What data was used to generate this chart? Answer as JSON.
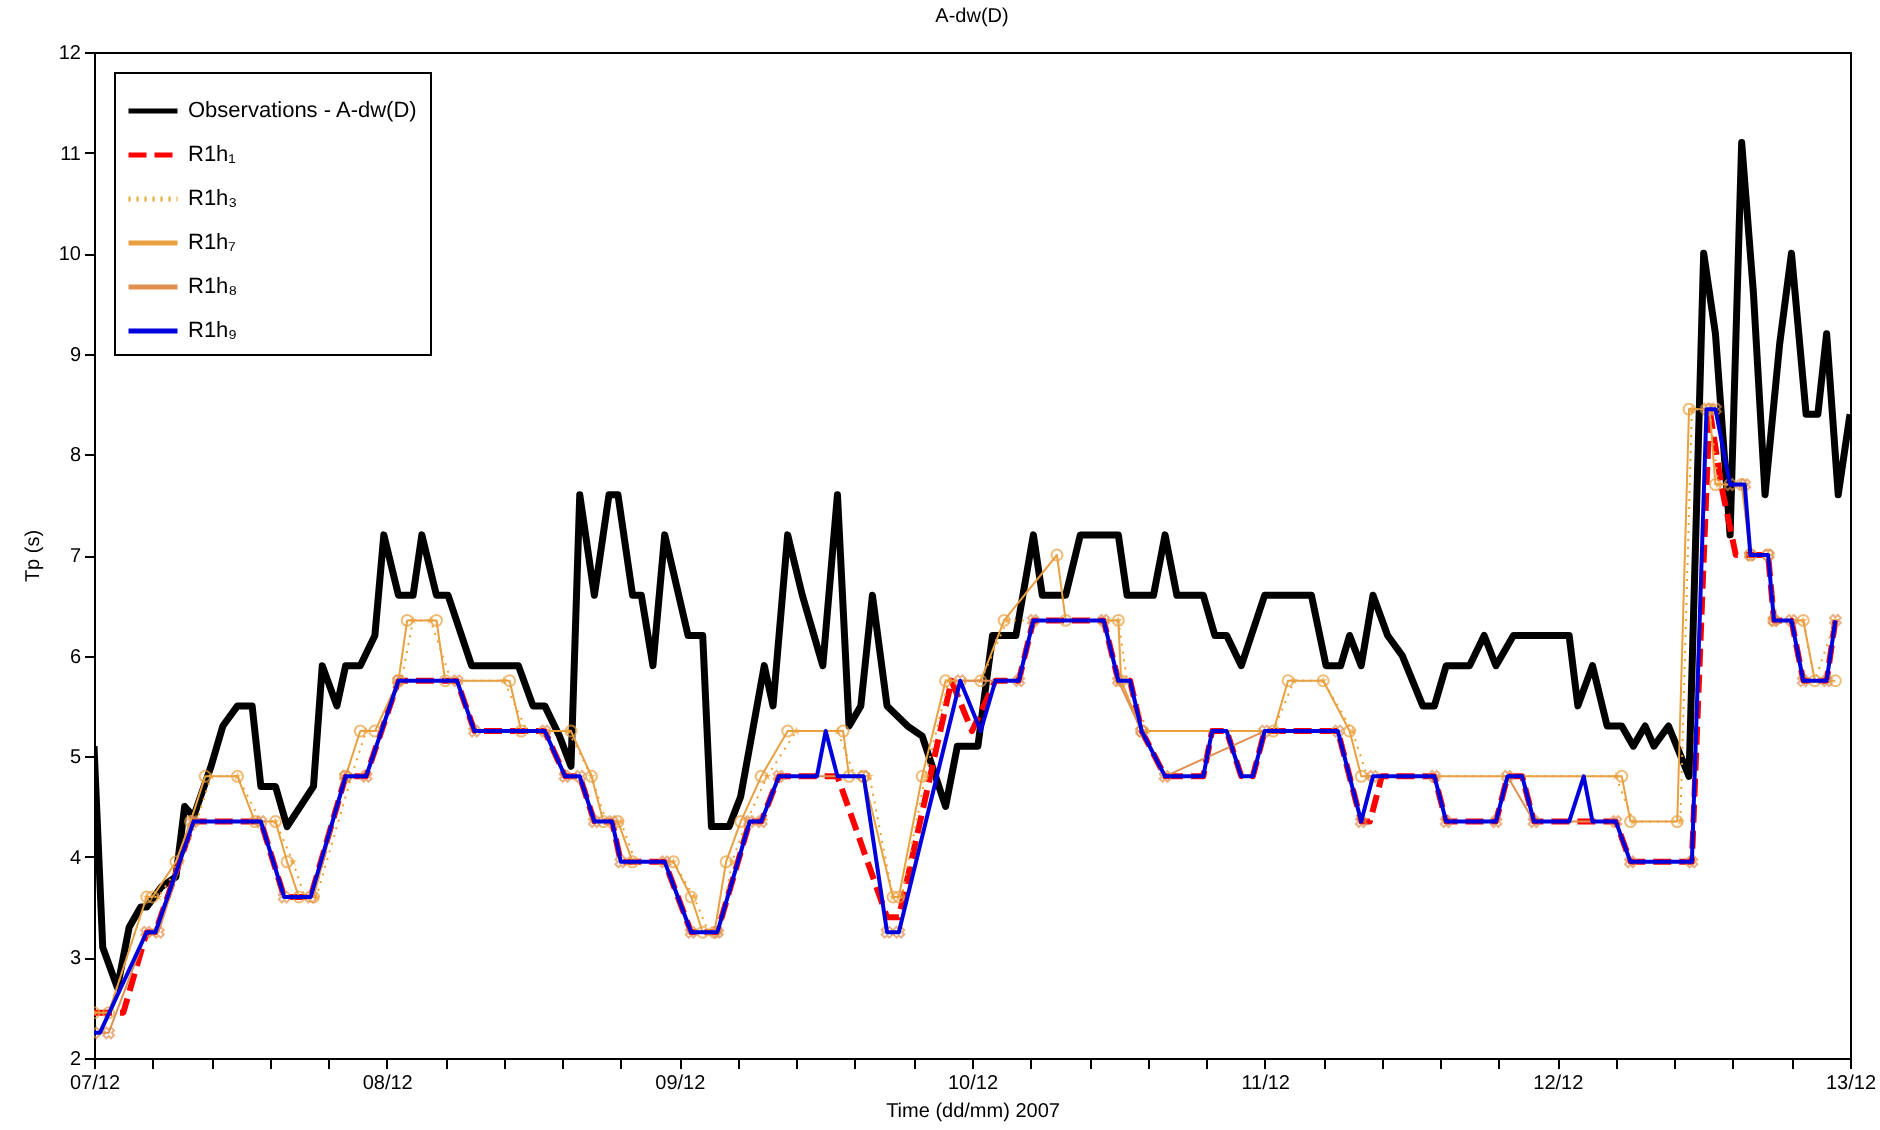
{
  "chart_data": {
    "type": "line",
    "title": "A-dw(D)",
    "xlabel": "Time (dd/mm) 2007",
    "ylabel": "Tp (s)",
    "xlim": [
      "2007-12-07",
      "2007-12-13"
    ],
    "ylim": [
      2,
      12
    ],
    "xticks": [
      {
        "value": "2007-12-07",
        "label": "07/12"
      },
      {
        "value": "2007-12-07T04:48",
        "label": null
      },
      {
        "value": "2007-12-07T09:36",
        "label": null
      },
      {
        "value": "2007-12-07T14:24",
        "label": null
      },
      {
        "value": "2007-12-07T19:12",
        "label": null
      },
      {
        "value": "2007-12-08",
        "label": "08/12"
      },
      {
        "value": "2007-12-08T04:48",
        "label": null
      },
      {
        "value": "2007-12-08T09:36",
        "label": null
      },
      {
        "value": "2007-12-08T14:24",
        "label": null
      },
      {
        "value": "2007-12-08T19:12",
        "label": null
      },
      {
        "value": "2007-12-09",
        "label": "09/12"
      },
      {
        "value": "2007-12-09T04:48",
        "label": null
      },
      {
        "value": "2007-12-09T09:36",
        "label": null
      },
      {
        "value": "2007-12-09T14:24",
        "label": null
      },
      {
        "value": "2007-12-09T19:12",
        "label": null
      },
      {
        "value": "2007-12-10",
        "label": "10/12"
      },
      {
        "value": "2007-12-10T04:48",
        "label": null
      },
      {
        "value": "2007-12-10T09:36",
        "label": null
      },
      {
        "value": "2007-12-10T14:24",
        "label": null
      },
      {
        "value": "2007-12-10T19:12",
        "label": null
      },
      {
        "value": "2007-12-11",
        "label": "11/12"
      },
      {
        "value": "2007-12-11T04:48",
        "label": null
      },
      {
        "value": "2007-12-11T09:36",
        "label": null
      },
      {
        "value": "2007-12-11T14:24",
        "label": null
      },
      {
        "value": "2007-12-11T19:12",
        "label": null
      },
      {
        "value": "2007-12-12",
        "label": "12/12"
      },
      {
        "value": "2007-12-12T04:48",
        "label": null
      },
      {
        "value": "2007-12-12T09:36",
        "label": null
      },
      {
        "value": "2007-12-12T14:24",
        "label": null
      },
      {
        "value": "2007-12-12T19:12",
        "label": null
      },
      {
        "value": "2007-12-13",
        "label": "13/12"
      }
    ],
    "yticks": [
      2,
      3,
      4,
      5,
      6,
      7,
      8,
      9,
      10,
      11,
      12
    ],
    "legend": "top left",
    "grid": false,
    "series": [
      {
        "name": "Observations - A-dw(D)",
        "color": "#000000",
        "line_style": "solid",
        "marker": "none",
        "x": [
          "2007-12-07T00:00",
          "2007-12-07T00:43",
          "2007-12-07T01:55",
          "2007-12-07T02:53",
          "2007-12-07T03:50",
          "2007-12-07T04:19",
          "2007-12-07T05:31",
          "2007-12-07T06:43",
          "2007-12-07T07:26",
          "2007-12-07T08:10",
          "2007-12-07T09:36",
          "2007-12-07T10:34",
          "2007-12-07T11:46",
          "2007-12-07T12:58",
          "2007-12-07T13:41",
          "2007-12-07T14:53",
          "2007-12-07T15:50",
          "2007-12-07T18:00",
          "2007-12-07T18:43",
          "2007-12-07T19:55",
          "2007-12-07T20:38",
          "2007-12-07T21:50",
          "2007-12-07T23:02",
          "2007-12-07T23:46",
          "2007-12-08T00:58",
          "2007-12-08T02:10",
          "2007-12-08T02:53",
          "2007-12-08T04:05",
          "2007-12-08T05:02",
          "2007-12-08T06:58",
          "2007-12-08T10:48",
          "2007-12-08T12:00",
          "2007-12-08T12:58",
          "2007-12-08T14:10",
          "2007-12-08T15:07",
          "2007-12-08T15:50",
          "2007-12-08T17:02",
          "2007-12-08T18:14",
          "2007-12-08T18:58",
          "2007-12-08T20:10",
          "2007-12-08T20:53",
          "2007-12-08T21:50",
          "2007-12-08T22:48",
          "2007-12-09T00:43",
          "2007-12-09T01:55",
          "2007-12-09T02:38",
          "2007-12-09T04:05",
          "2007-12-09T05:02",
          "2007-12-09T06:58",
          "2007-12-09T07:41",
          "2007-12-09T08:53",
          "2007-12-09T10:05",
          "2007-12-09T11:46",
          "2007-12-09T12:58",
          "2007-12-09T13:55",
          "2007-12-09T14:53",
          "2007-12-09T15:50",
          "2007-12-09T17:02",
          "2007-12-09T18:43",
          "2007-12-09T19:55",
          "2007-12-09T21:50",
          "2007-12-09T22:48",
          "2007-12-10T00:29",
          "2007-12-10T01:41",
          "2007-12-10T03:36",
          "2007-12-10T05:02",
          "2007-12-10T05:46",
          "2007-12-10T07:41",
          "2007-12-10T08:53",
          "2007-12-10T12:00",
          "2007-12-10T12:43",
          "2007-12-10T14:53",
          "2007-12-10T15:50",
          "2007-12-10T16:48",
          "2007-12-10T18:58",
          "2007-12-10T19:55",
          "2007-12-10T20:53",
          "2007-12-10T22:05",
          "2007-12-11T00:00",
          "2007-12-11T03:50",
          "2007-12-11T05:02",
          "2007-12-11T06:14",
          "2007-12-11T06:58",
          "2007-12-11T07:55",
          "2007-12-11T08:53",
          "2007-12-11T10:05",
          "2007-12-11T11:17",
          "2007-12-11T12:58",
          "2007-12-11T13:55",
          "2007-12-11T14:53",
          "2007-12-11T16:48",
          "2007-12-11T18:00",
          "2007-12-11T18:58",
          "2007-12-11T20:24",
          "2007-12-12T00:58",
          "2007-12-12T01:41",
          "2007-12-12T02:53",
          "2007-12-12T04:05",
          "2007-12-12T05:17",
          "2007-12-12T06:14",
          "2007-12-12T07:12",
          "2007-12-12T07:55",
          "2007-12-12T09:07",
          "2007-12-12T10:48",
          "2007-12-12T12:00",
          "2007-12-12T12:58",
          "2007-12-12T14:10",
          "2007-12-12T15:07",
          "2007-12-12T16:05",
          "2007-12-12T17:02",
          "2007-12-12T18:14",
          "2007-12-12T19:12",
          "2007-12-12T20:24",
          "2007-12-12T21:22",
          "2007-12-12T22:05",
          "2007-12-12T23:02",
          "2007-12-13T00:00"
        ],
        "values": [
          5.1,
          3.1,
          2.7,
          3.3,
          3.5,
          3.5,
          3.7,
          3.8,
          4.5,
          4.4,
          4.9,
          5.3,
          5.5,
          5.5,
          4.7,
          4.7,
          4.3,
          4.7,
          5.9,
          5.5,
          5.9,
          5.9,
          6.2,
          7.2,
          6.6,
          6.6,
          7.2,
          6.6,
          6.6,
          5.9,
          5.9,
          5.5,
          5.5,
          5.2,
          4.9,
          7.6,
          6.6,
          7.6,
          7.6,
          6.6,
          6.6,
          5.9,
          7.2,
          6.2,
          6.2,
          4.3,
          4.3,
          4.6,
          5.9,
          5.5,
          7.2,
          6.6,
          5.9,
          7.6,
          5.3,
          5.5,
          6.6,
          5.5,
          5.3,
          5.2,
          4.5,
          5.1,
          5.1,
          6.2,
          6.2,
          7.2,
          6.6,
          6.6,
          7.2,
          7.2,
          6.6,
          6.6,
          7.2,
          6.6,
          6.6,
          6.2,
          6.2,
          5.9,
          6.6,
          6.6,
          5.9,
          5.9,
          6.2,
          5.9,
          6.6,
          6.2,
          6,
          5.5,
          5.5,
          5.9,
          5.9,
          6.2,
          5.9,
          6.2,
          6.2,
          5.5,
          5.9,
          5.3,
          5.3,
          5.1,
          5.3,
          5.1,
          5.3,
          4.8,
          10,
          9.2,
          7.2,
          11.1,
          9.6,
          7.6,
          9.1,
          10,
          8.4,
          8.4,
          9.2,
          7.6,
          8.4
        ]
      },
      {
        "name": "R1h₁",
        "color": "#ff0000",
        "line_style": "dashed",
        "marker": "none",
        "x": [
          "2007-12-07T00:00",
          "2007-12-07T02:24",
          "2007-12-07T04:19",
          "2007-12-07T05:02",
          "2007-12-07T08:10",
          "2007-12-07T13:41",
          "2007-12-07T15:36",
          "2007-12-07T17:46",
          "2007-12-07T20:38",
          "2007-12-07T22:19",
          "2007-12-08T00:58",
          "2007-12-08T05:46",
          "2007-12-08T07:12",
          "2007-12-08T12:58",
          "2007-12-08T14:38",
          "2007-12-08T15:50",
          "2007-12-08T17:02",
          "2007-12-08T18:29",
          "2007-12-08T19:12",
          "2007-12-08T22:48",
          "2007-12-09T00:58",
          "2007-12-09T03:07",
          "2007-12-09T05:46",
          "2007-12-09T06:43",
          "2007-12-09T08:10",
          "2007-12-09T12:58",
          "2007-12-09T17:02",
          "2007-12-09T18:00",
          "2007-12-09T22:19",
          "2007-12-10T00:00",
          "2007-12-10T01:55",
          "2007-12-10T03:50",
          "2007-12-10T05:02",
          "2007-12-10T10:48",
          "2007-12-10T12:00",
          "2007-12-10T12:58",
          "2007-12-10T13:55",
          "2007-12-10T15:50",
          "2007-12-10T18:58",
          "2007-12-10T19:41",
          "2007-12-10T20:53",
          "2007-12-10T22:05",
          "2007-12-10T23:02",
          "2007-12-11T00:00",
          "2007-12-11T06:00",
          "2007-12-11T07:55",
          "2007-12-11T08:38",
          "2007-12-11T09:36",
          "2007-12-11T13:55",
          "2007-12-11T14:53",
          "2007-12-11T18:58",
          "2007-12-11T19:55",
          "2007-12-11T21:07",
          "2007-12-11T22:05",
          "2007-12-12T04:48",
          "2007-12-12T06:00",
          "2007-12-12T11:02",
          "2007-12-12T12:29",
          "2007-12-12T13:26",
          "2007-12-12T14:38",
          "2007-12-12T17:17",
          "2007-12-12T17:46",
          "2007-12-12T19:12",
          "2007-12-12T20:10",
          "2007-12-12T22:05",
          "2007-12-12T22:48"
        ],
        "values": [
          2.45,
          2.45,
          3.25,
          3.25,
          4.35,
          4.35,
          3.6,
          3.6,
          4.8,
          4.8,
          5.75,
          5.75,
          5.25,
          5.25,
          4.8,
          4.8,
          4.35,
          4.35,
          3.95,
          3.95,
          3.25,
          3.25,
          4.35,
          4.35,
          4.8,
          4.8,
          3.4,
          3.4,
          5.75,
          5.25,
          5.75,
          5.75,
          6.35,
          6.35,
          5.75,
          5.75,
          5.25,
          4.8,
          4.8,
          5.25,
          5.25,
          4.8,
          4.8,
          5.25,
          5.25,
          4.35,
          4.35,
          4.8,
          4.8,
          4.35,
          4.35,
          4.8,
          4.8,
          4.35,
          4.35,
          3.95,
          3.95,
          8.45,
          7.7,
          7,
          7,
          6.35,
          6.35,
          5.75,
          5.75,
          6.35
        ]
      },
      {
        "name": "R1h₃",
        "color": "#f0a030",
        "line_style": "dotted",
        "marker": "star",
        "x": [
          "2007-12-07T00:00",
          "2007-12-07T01:12",
          "2007-12-07T04:19",
          "2007-12-07T05:17",
          "2007-12-07T07:12",
          "2007-12-07T08:24",
          "2007-12-07T09:36",
          "2007-12-07T11:46",
          "2007-12-07T13:41",
          "2007-12-07T14:53",
          "2007-12-07T16:19",
          "2007-12-07T17:17",
          "2007-12-07T18:14",
          "2007-12-07T21:07",
          "2007-12-07T22:19",
          "2007-12-07T23:31",
          "2007-12-08T01:12",
          "2007-12-08T02:10",
          "2007-12-08T03:36",
          "2007-12-08T05:17",
          "2007-12-08T09:36",
          "2007-12-08T11:31",
          "2007-12-08T14:53",
          "2007-12-08T16:48",
          "2007-12-08T18:00",
          "2007-12-08T19:12",
          "2007-12-08T20:24",
          "2007-12-08T23:31",
          "2007-12-09T01:12",
          "2007-12-09T02:24",
          "2007-12-09T03:22",
          "2007-12-09T04:19",
          "2007-12-09T05:31",
          "2007-12-09T07:12",
          "2007-12-09T09:36",
          "2007-12-09T12:58",
          "2007-12-09T14:24",
          "2007-12-09T15:36",
          "2007-12-09T17:31",
          "2007-12-09T18:14",
          "2007-12-09T20:10",
          "2007-12-09T22:05",
          "2007-12-10T00:43",
          "2007-12-10T02:53",
          "2007-12-10T12:00",
          "2007-12-10T12:43",
          "2007-12-10T14:24",
          "2007-12-11T00:43",
          "2007-12-11T02:24",
          "2007-12-11T04:48",
          "2007-12-11T07:12",
          "2007-12-11T08:24",
          "2007-12-12T04:48",
          "2007-12-12T06:14",
          "2007-12-12T10:05",
          "2007-12-12T11:02",
          "2007-12-12T12:29",
          "2007-12-12T13:12",
          "2007-12-12T15:07",
          "2007-12-12T15:50",
          "2007-12-12T17:17",
          "2007-12-12T18:00",
          "2007-12-12T20:10",
          "2007-12-12T21:07",
          "2007-12-12T22:48"
        ],
        "values": [
          2.45,
          2.45,
          3.6,
          3.6,
          3.95,
          4.35,
          4.8,
          4.8,
          4.35,
          4.35,
          3.95,
          3.6,
          3.6,
          4.8,
          5.25,
          5.25,
          5.75,
          6.35,
          6.35,
          5.75,
          5.75,
          5.25,
          5.25,
          4.8,
          4.35,
          4.35,
          3.95,
          3.95,
          3.6,
          3.25,
          3.25,
          3.95,
          4.35,
          4.8,
          5.25,
          5.25,
          4.8,
          4.8,
          3.6,
          3.6,
          4.8,
          5.75,
          5.75,
          6.35,
          6.35,
          5.75,
          5.25,
          5.25,
          5.75,
          5.75,
          5.25,
          4.8,
          4.8,
          4.35,
          4.35,
          8.45,
          8.45,
          7.7,
          7.7,
          7,
          7,
          6.35,
          6.35,
          5.75,
          6.35
        ]
      },
      {
        "name": "R1h₇",
        "color": "#e8a040",
        "line_style": "solid",
        "marker": "circle",
        "x": [
          "2007-12-07T00:00",
          "2007-12-07T01:12",
          "2007-12-07T04:19",
          "2007-12-07T04:48",
          "2007-12-07T06:43",
          "2007-12-07T07:55",
          "2007-12-07T09:07",
          "2007-12-07T11:46",
          "2007-12-07T13:12",
          "2007-12-07T14:53",
          "2007-12-07T15:50",
          "2007-12-07T16:48",
          "2007-12-07T18:00",
          "2007-12-07T20:38",
          "2007-12-07T21:50",
          "2007-12-07T23:02",
          "2007-12-08T00:58",
          "2007-12-08T01:41",
          "2007-12-08T04:05",
          "2007-12-08T04:48",
          "2007-12-08T10:05",
          "2007-12-08T11:02",
          "2007-12-08T15:07",
          "2007-12-08T16:48",
          "2007-12-08T17:46",
          "2007-12-08T18:58",
          "2007-12-08T20:10",
          "2007-12-08T23:31",
          "2007-12-09T00:58",
          "2007-12-09T01:55",
          "2007-12-09T02:53",
          "2007-12-09T03:50",
          "2007-12-09T05:02",
          "2007-12-09T06:43",
          "2007-12-09T08:53",
          "2007-12-09T13:26",
          "2007-12-09T13:55",
          "2007-12-09T15:07",
          "2007-12-09T17:31",
          "2007-12-09T18:00",
          "2007-12-09T19:55",
          "2007-12-09T21:50",
          "2007-12-10T00:43",
          "2007-12-10T02:38",
          "2007-12-10T06:58",
          "2007-12-10T07:41",
          "2007-12-10T12:00",
          "2007-12-10T12:14",
          "2007-12-10T13:55",
          "2007-12-11T00:43",
          "2007-12-11T01:55",
          "2007-12-11T04:48",
          "2007-12-11T06:58",
          "2007-12-11T07:55",
          "2007-12-12T05:17",
          "2007-12-12T06:00",
          "2007-12-12T09:50",
          "2007-12-12T10:48",
          "2007-12-12T12:29",
          "2007-12-12T12:58",
          "2007-12-12T15:07",
          "2007-12-12T15:50",
          "2007-12-12T17:17",
          "2007-12-12T17:46",
          "2007-12-12T20:10",
          "2007-12-12T21:07",
          "2007-12-12T22:48"
        ],
        "values": [
          2.45,
          2.45,
          3.6,
          3.6,
          3.95,
          4.35,
          4.8,
          4.8,
          4.35,
          4.35,
          3.95,
          3.6,
          3.6,
          4.8,
          5.25,
          5.25,
          5.75,
          6.35,
          6.35,
          5.75,
          5.75,
          5.25,
          5.25,
          4.8,
          4.35,
          4.35,
          3.95,
          3.95,
          3.6,
          3.25,
          3.25,
          3.95,
          4.35,
          4.8,
          5.25,
          5.25,
          4.8,
          4.8,
          3.6,
          3.6,
          4.8,
          5.75,
          5.75,
          6.35,
          7,
          6.35,
          6.35,
          5.75,
          5.25,
          5.25,
          5.75,
          5.75,
          5.25,
          4.8,
          4.8,
          4.35,
          4.35,
          8.45,
          8.45,
          7.7,
          7.7,
          7,
          7,
          6.35,
          6.35,
          5.75,
          5.75
        ]
      },
      {
        "name": "R1h₈",
        "color": "#e09050",
        "line_style": "solid",
        "marker": "cross",
        "x": [
          "2007-12-07T00:00",
          "2007-12-07T01:12",
          "2007-12-07T04:19",
          "2007-12-07T05:17",
          "2007-12-07T08:10",
          "2007-12-07T13:41",
          "2007-12-07T15:36",
          "2007-12-07T17:46",
          "2007-12-07T20:38",
          "2007-12-07T22:19",
          "2007-12-08T00:58",
          "2007-12-08T05:46",
          "2007-12-08T07:12",
          "2007-12-08T12:58",
          "2007-12-08T14:38",
          "2007-12-08T15:50",
          "2007-12-08T17:02",
          "2007-12-08T18:29",
          "2007-12-08T19:12",
          "2007-12-08T22:48",
          "2007-12-09T00:58",
          "2007-12-09T03:07",
          "2007-12-09T05:46",
          "2007-12-09T06:43",
          "2007-12-09T08:10",
          "2007-12-09T15:07",
          "2007-12-09T17:02",
          "2007-12-09T18:00",
          "2007-12-09T23:02",
          "2007-12-10T03:50",
          "2007-12-10T05:02",
          "2007-12-10T10:48",
          "2007-12-10T12:00",
          "2007-12-10T13:55",
          "2007-12-10T15:50",
          "2007-12-11T00:00",
          "2007-12-11T06:00",
          "2007-12-11T07:55",
          "2007-12-11T08:53",
          "2007-12-11T13:55",
          "2007-12-11T14:53",
          "2007-12-11T18:58",
          "2007-12-11T19:55",
          "2007-12-11T22:05",
          "2007-12-12T04:48",
          "2007-12-12T06:00",
          "2007-12-12T11:02",
          "2007-12-12T12:14",
          "2007-12-12T12:58",
          "2007-12-12T14:10",
          "2007-12-12T15:22",
          "2007-12-12T15:50",
          "2007-12-12T17:17",
          "2007-12-12T17:46",
          "2007-12-12T19:12",
          "2007-12-12T20:10",
          "2007-12-12T22:05",
          "2007-12-12T22:48"
        ],
        "values": [
          2.25,
          2.25,
          3.25,
          3.25,
          4.35,
          4.35,
          3.6,
          3.6,
          4.8,
          4.8,
          5.75,
          5.75,
          5.25,
          5.25,
          4.8,
          4.8,
          4.35,
          4.35,
          3.95,
          3.95,
          3.25,
          3.25,
          4.35,
          4.35,
          4.8,
          4.8,
          3.25,
          3.25,
          5.75,
          5.75,
          6.35,
          6.35,
          5.75,
          5.25,
          4.8,
          5.25,
          5.25,
          4.35,
          4.8,
          4.8,
          4.35,
          4.35,
          4.8,
          4.35,
          4.35,
          3.95,
          3.95,
          8.45,
          8.45,
          7.7,
          7.7,
          7,
          7,
          6.35,
          6.35,
          5.75,
          5.75,
          6.35
        ]
      },
      {
        "name": "R1h₉",
        "color": "#0000dd",
        "line_style": "solid",
        "marker": "none",
        "x": [
          "2007-12-07T00:00",
          "2007-12-07T00:29",
          "2007-12-07T04:19",
          "2007-12-07T05:02",
          "2007-12-07T08:10",
          "2007-12-07T13:41",
          "2007-12-07T15:36",
          "2007-12-07T17:46",
          "2007-12-07T20:38",
          "2007-12-07T22:19",
          "2007-12-08T00:58",
          "2007-12-08T05:46",
          "2007-12-08T07:12",
          "2007-12-08T12:58",
          "2007-12-08T14:38",
          "2007-12-08T15:50",
          "2007-12-08T17:02",
          "2007-12-08T18:29",
          "2007-12-08T19:12",
          "2007-12-08T22:48",
          "2007-12-09T00:58",
          "2007-12-09T03:07",
          "2007-12-09T05:46",
          "2007-12-09T06:43",
          "2007-12-09T08:10",
          "2007-12-09T11:17",
          "2007-12-09T12:00",
          "2007-12-09T12:58",
          "2007-12-09T15:07",
          "2007-12-09T17:02",
          "2007-12-09T18:00",
          "2007-12-09T23:02",
          "2007-12-10T00:43",
          "2007-12-10T01:55",
          "2007-12-10T03:50",
          "2007-12-10T05:02",
          "2007-12-10T10:48",
          "2007-12-10T12:00",
          "2007-12-10T12:58",
          "2007-12-10T13:55",
          "2007-12-10T15:50",
          "2007-12-10T18:58",
          "2007-12-10T19:41",
          "2007-12-10T20:53",
          "2007-12-10T22:05",
          "2007-12-10T23:02",
          "2007-12-11T00:00",
          "2007-12-11T06:00",
          "2007-12-11T07:55",
          "2007-12-11T08:53",
          "2007-12-11T13:55",
          "2007-12-11T14:53",
          "2007-12-11T18:58",
          "2007-12-11T19:55",
          "2007-12-11T21:07",
          "2007-12-11T22:05",
          "2007-12-12T00:58",
          "2007-12-12T02:10",
          "2007-12-12T02:53",
          "2007-12-12T04:48",
          "2007-12-12T06:00",
          "2007-12-12T11:02",
          "2007-12-12T12:14",
          "2007-12-12T12:58",
          "2007-12-12T14:10",
          "2007-12-12T15:22",
          "2007-12-12T15:50",
          "2007-12-12T17:17",
          "2007-12-12T17:46",
          "2007-12-12T19:12",
          "2007-12-12T20:10",
          "2007-12-12T22:05",
          "2007-12-12T22:48"
        ],
        "values": [
          2.25,
          2.25,
          3.25,
          3.25,
          4.35,
          4.35,
          3.6,
          3.6,
          4.8,
          4.8,
          5.75,
          5.75,
          5.25,
          5.25,
          4.8,
          4.8,
          4.35,
          4.35,
          3.95,
          3.95,
          3.25,
          3.25,
          4.35,
          4.35,
          4.8,
          4.8,
          5.25,
          4.8,
          4.8,
          3.25,
          3.25,
          5.75,
          5.25,
          5.75,
          5.75,
          6.35,
          6.35,
          5.75,
          5.75,
          5.25,
          4.8,
          4.8,
          5.25,
          5.25,
          4.8,
          4.8,
          5.25,
          5.25,
          4.35,
          4.8,
          4.8,
          4.35,
          4.35,
          4.8,
          4.8,
          4.35,
          4.35,
          4.8,
          4.35,
          4.35,
          3.95,
          3.95,
          8.45,
          8.45,
          7.7,
          7.7,
          7,
          7,
          6.35,
          6.35,
          5.75,
          5.75,
          6.35
        ]
      }
    ]
  }
}
